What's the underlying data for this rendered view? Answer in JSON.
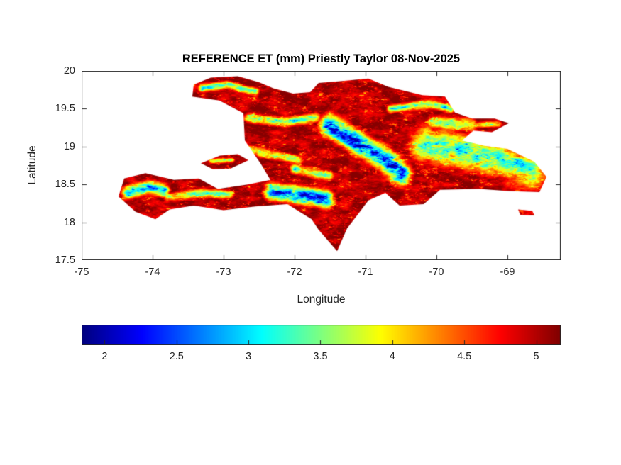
{
  "chart_data": {
    "type": "heatmap",
    "title": "REFERENCE ET (mm) Priestly Taylor 08-Nov-2025",
    "xlabel": "Longitude",
    "ylabel": "Latitude",
    "xlim": [
      -75,
      -68.25
    ],
    "ylim": [
      17.5,
      20
    ],
    "xticks": [
      -75,
      -74,
      -73,
      -72,
      -71,
      -70,
      -69
    ],
    "yticks": [
      20,
      19.5,
      19,
      18.5,
      18,
      17.5
    ],
    "grid": false,
    "colormap": "jet",
    "axis_color": "#262626",
    "background": "#ffffff",
    "units": "mm",
    "region": "Hispaniola (Haiti and Dominican Republic)",
    "colorbar": {
      "orientation": "horizontal",
      "position": "south",
      "range": [
        1.84,
        5.17
      ],
      "ticks": [
        2,
        2.5,
        3,
        3.5,
        4,
        4.5,
        5
      ]
    },
    "field": {
      "description": "Priestley-Taylor reference ET: ~4.8-5.1 mm over lowlands and coasts (dark red), dropping to 2-3.5 mm (blue/cyan/green) over mountain ranges and the eastern interior",
      "base_value": 5.0,
      "value_min": 1.95,
      "value_max": 5.15,
      "islands": {
        "hispaniola": [
          [
            -73.42,
            19.82
          ],
          [
            -73.18,
            19.91
          ],
          [
            -72.8,
            19.93
          ],
          [
            -72.5,
            19.85
          ],
          [
            -72.3,
            19.77
          ],
          [
            -72.02,
            19.7
          ],
          [
            -71.78,
            19.72
          ],
          [
            -71.66,
            19.84
          ],
          [
            -71.3,
            19.87
          ],
          [
            -70.96,
            19.9
          ],
          [
            -70.68,
            19.79
          ],
          [
            -70.2,
            19.68
          ],
          [
            -69.88,
            19.66
          ],
          [
            -69.74,
            19.45
          ],
          [
            -69.5,
            19.37
          ],
          [
            -69.18,
            19.37
          ],
          [
            -68.98,
            19.31
          ],
          [
            -69.22,
            19.19
          ],
          [
            -69.48,
            19.21
          ],
          [
            -69.64,
            19.08
          ],
          [
            -69.32,
            19.01
          ],
          [
            -69.0,
            18.97
          ],
          [
            -68.62,
            18.8
          ],
          [
            -68.45,
            18.6
          ],
          [
            -68.55,
            18.4
          ],
          [
            -68.95,
            18.41
          ],
          [
            -69.4,
            18.44
          ],
          [
            -69.95,
            18.43
          ],
          [
            -70.18,
            18.24
          ],
          [
            -70.52,
            18.22
          ],
          [
            -70.72,
            18.39
          ],
          [
            -70.96,
            18.29
          ],
          [
            -71.08,
            18.14
          ],
          [
            -71.26,
            17.92
          ],
          [
            -71.4,
            17.62
          ],
          [
            -71.66,
            17.9
          ],
          [
            -71.76,
            18.04
          ],
          [
            -72.1,
            18.24
          ],
          [
            -72.55,
            18.21
          ],
          [
            -73.0,
            18.16
          ],
          [
            -73.42,
            18.22
          ],
          [
            -73.76,
            18.17
          ],
          [
            -73.96,
            18.04
          ],
          [
            -74.24,
            18.14
          ],
          [
            -74.48,
            18.34
          ],
          [
            -74.4,
            18.58
          ],
          [
            -74.1,
            18.65
          ],
          [
            -73.7,
            18.56
          ],
          [
            -73.35,
            18.58
          ],
          [
            -73.08,
            18.44
          ],
          [
            -72.66,
            18.5
          ],
          [
            -72.34,
            18.56
          ],
          [
            -72.48,
            18.78
          ],
          [
            -72.7,
            19.08
          ],
          [
            -72.72,
            19.44
          ],
          [
            -73.06,
            19.61
          ],
          [
            -73.44,
            19.66
          ]
        ],
        "gonave": [
          [
            -73.32,
            18.78
          ],
          [
            -73.05,
            18.88
          ],
          [
            -72.8,
            18.9
          ],
          [
            -72.65,
            18.82
          ],
          [
            -72.9,
            18.71
          ],
          [
            -73.15,
            18.7
          ]
        ],
        "saona": [
          [
            -68.85,
            18.17
          ],
          [
            -68.65,
            18.15
          ],
          [
            -68.62,
            18.09
          ],
          [
            -68.82,
            18.1
          ]
        ]
      },
      "cool_zones": [
        {
          "name": "massif-de-la-hotte",
          "points": [
            [
              -74.34,
              18.4
            ],
            [
              -74.06,
              18.47
            ],
            [
              -73.84,
              18.42
            ]
          ],
          "width": 0.13,
          "depth": 2.1
        },
        {
          "name": "sud-peninsula-ridge",
          "points": [
            [
              -73.78,
              18.33
            ],
            [
              -73.3,
              18.38
            ],
            [
              -72.92,
              18.37
            ]
          ],
          "width": 0.09,
          "depth": 1.4
        },
        {
          "name": "selle-bahoruco",
          "points": [
            [
              -72.32,
              18.4
            ],
            [
              -71.95,
              18.36
            ],
            [
              -71.55,
              18.3
            ]
          ],
          "width": 0.17,
          "depth": 2.4
        },
        {
          "name": "cordillera-central",
          "points": [
            [
              -71.5,
              19.28
            ],
            [
              -71.1,
              19.05
            ],
            [
              -70.72,
              18.82
            ],
            [
              -70.5,
              18.64
            ]
          ],
          "width": 0.22,
          "depth": 2.7
        },
        {
          "name": "sierra-de-neiba",
          "points": [
            [
              -72.0,
              18.7
            ],
            [
              -71.52,
              18.62
            ]
          ],
          "width": 0.1,
          "depth": 1.5
        },
        {
          "name": "matheux-noires",
          "points": [
            [
              -72.72,
              18.98
            ],
            [
              -72.25,
              18.88
            ],
            [
              -71.95,
              18.82
            ]
          ],
          "width": 0.09,
          "depth": 1.3
        },
        {
          "name": "massif-du-nord",
          "points": [
            [
              -72.65,
              19.38
            ],
            [
              -72.15,
              19.32
            ],
            [
              -71.7,
              19.38
            ]
          ],
          "width": 0.09,
          "depth": 1.5
        },
        {
          "name": "cordillera-septentrional",
          "points": [
            [
              -70.65,
              19.5
            ],
            [
              -70.1,
              19.56
            ],
            [
              -69.8,
              19.5
            ]
          ],
          "width": 0.08,
          "depth": 1.7
        },
        {
          "name": "eastern-lowlands",
          "points": [
            [
              -70.15,
              19.02
            ],
            [
              -69.55,
              18.92
            ],
            [
              -69.05,
              18.82
            ],
            [
              -68.68,
              18.68
            ]
          ],
          "width": 0.34,
          "depth": 1.7
        },
        {
          "name": "los-haitises",
          "points": [
            [
              -70.05,
              19.33
            ],
            [
              -69.5,
              19.28
            ]
          ],
          "width": 0.12,
          "depth": 1.4
        },
        {
          "name": "nord-ouest-peninsula",
          "points": [
            [
              -73.3,
              19.77
            ],
            [
              -72.95,
              19.82
            ],
            [
              -72.55,
              19.72
            ]
          ],
          "width": 0.08,
          "depth": 1.6
        },
        {
          "name": "samana",
          "points": [
            [
              -69.45,
              19.28
            ],
            [
              -69.12,
              19.3
            ]
          ],
          "width": 0.06,
          "depth": 1.3
        },
        {
          "name": "gonave",
          "points": [
            [
              -73.18,
              18.81
            ],
            [
              -72.88,
              18.82
            ]
          ],
          "width": 0.05,
          "depth": 1.2
        }
      ]
    }
  }
}
